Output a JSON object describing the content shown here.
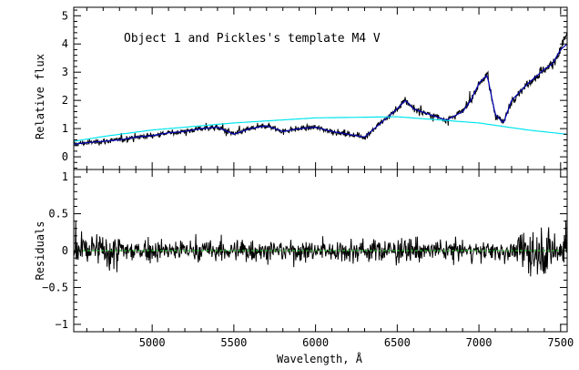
{
  "chart_data": [
    {
      "type": "line",
      "panel": "top",
      "annotation": "Object 1 and Pickles's template M4 V",
      "title": "",
      "xlabel": "",
      "ylabel": "Relative flux",
      "xlim": [
        4520,
        7540
      ],
      "ylim": [
        -0.45,
        5.3
      ],
      "xticks": [
        5000,
        5500,
        6000,
        6500,
        7000,
        7500
      ],
      "yticks": [
        0,
        1,
        2,
        3,
        4,
        5
      ],
      "xtick_labels": [
        "",
        "",
        "",
        "",
        "",
        ""
      ],
      "ytick_labels": [
        "0",
        "1",
        "2",
        "3",
        "4",
        "5"
      ],
      "grid": false,
      "series": [
        {
          "color": "#000000",
          "style": "noisy",
          "x": [
            4520,
            4600,
            4700,
            4800,
            4900,
            5000,
            5100,
            5200,
            5300,
            5400,
            5500,
            5600,
            5700,
            5800,
            5900,
            6000,
            6100,
            6200,
            6300,
            6400,
            6500,
            6550,
            6600,
            6700,
            6800,
            6900,
            6950,
            7000,
            7050,
            7100,
            7150,
            7200,
            7300,
            7400,
            7450,
            7500,
            7540
          ],
          "y": [
            0.45,
            0.5,
            0.55,
            0.6,
            0.7,
            0.75,
            0.85,
            0.9,
            1.0,
            1.05,
            0.8,
            1.0,
            1.1,
            0.9,
            1.0,
            1.05,
            0.9,
            0.8,
            0.7,
            1.2,
            1.7,
            2.0,
            1.7,
            1.5,
            1.3,
            1.6,
            2.0,
            2.6,
            2.9,
            1.5,
            1.2,
            2.0,
            2.6,
            3.1,
            3.3,
            3.8,
            4.4
          ]
        },
        {
          "color": "#0000b4",
          "style": "smooth",
          "x": [
            4520,
            4600,
            4700,
            4800,
            4900,
            5000,
            5100,
            5200,
            5300,
            5400,
            5500,
            5600,
            5700,
            5800,
            5900,
            6000,
            6100,
            6200,
            6300,
            6400,
            6500,
            6550,
            6600,
            6700,
            6800,
            6900,
            6950,
            7000,
            7050,
            7100,
            7150,
            7200,
            7300,
            7400,
            7450,
            7500,
            7540
          ],
          "y": [
            0.45,
            0.5,
            0.55,
            0.6,
            0.7,
            0.75,
            0.85,
            0.9,
            1.0,
            1.05,
            0.8,
            1.0,
            1.1,
            0.9,
            1.0,
            1.05,
            0.9,
            0.8,
            0.7,
            1.2,
            1.7,
            2.0,
            1.7,
            1.5,
            1.3,
            1.6,
            2.0,
            2.6,
            2.9,
            1.5,
            1.2,
            2.0,
            2.6,
            3.1,
            3.3,
            3.8,
            4.0
          ]
        },
        {
          "color": "#00e5ee",
          "style": "smooth",
          "x": [
            4520,
            4700,
            5000,
            5500,
            6000,
            6500,
            7000,
            7300,
            7540
          ],
          "y": [
            0.55,
            0.72,
            0.95,
            1.2,
            1.38,
            1.42,
            1.2,
            0.95,
            0.8
          ]
        }
      ]
    },
    {
      "type": "line",
      "panel": "bottom",
      "title": "",
      "xlabel": "Wavelength, Å",
      "ylabel": "Residuals",
      "xlim": [
        4520,
        7540
      ],
      "ylim": [
        -1.1,
        1.1
      ],
      "xticks": [
        5000,
        5500,
        6000,
        6500,
        7000,
        7500
      ],
      "yticks": [
        -1,
        -0.5,
        0,
        0.5,
        1
      ],
      "xtick_labels": [
        "5000",
        "5500",
        "6000",
        "6500",
        "7000",
        "7500"
      ],
      "ytick_labels": [
        "−1",
        "−0.5",
        "0",
        "0.5",
        "1"
      ],
      "grid": false,
      "series": [
        {
          "color": "#000000",
          "style": "noisy",
          "x": [
            4520,
            4700,
            5000,
            5500,
            6000,
            6500,
            7000,
            7300,
            7540
          ],
          "y": [
            0,
            0,
            0,
            0,
            0,
            0,
            0,
            0,
            0
          ]
        },
        {
          "color": "#2eb82e",
          "style": "dashed",
          "x": [
            4520,
            7540
          ],
          "y": [
            0,
            0
          ]
        }
      ]
    }
  ]
}
